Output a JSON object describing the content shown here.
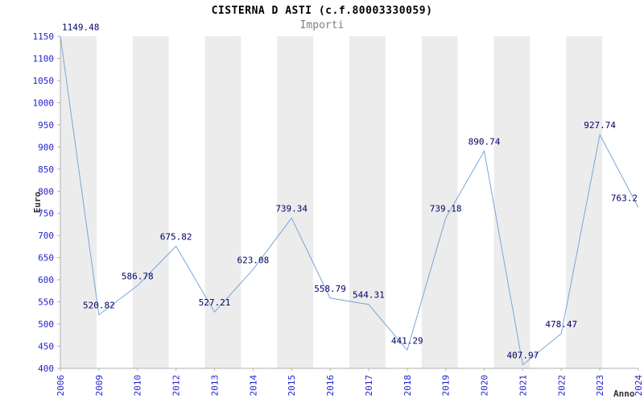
{
  "chart_data": {
    "type": "line",
    "title": "CISTERNA D ASTI (c.f.80003330059)",
    "subtitle": "Importi",
    "xlabel": "Anno",
    "ylabel": "Euro",
    "categories": [
      "2006",
      "2009",
      "2010",
      "2012",
      "2013",
      "2014",
      "2015",
      "2016",
      "2017",
      "2018",
      "2019",
      "2020",
      "2021",
      "2022",
      "2023",
      "2024"
    ],
    "values": [
      1149.48,
      520.82,
      586.78,
      675.82,
      527.21,
      623.08,
      739.34,
      558.79,
      544.31,
      441.29,
      739.18,
      890.74,
      407.97,
      478.47,
      927.74,
      763.2
    ],
    "point_labels": [
      "1149.48",
      "520.82",
      "586.78",
      "675.82",
      "527.21",
      "623.08",
      "739.34",
      "558.79",
      "544.31",
      "441.29",
      "739.18",
      "890.74",
      "407.97",
      "478.47",
      "927.74",
      "763.2"
    ],
    "ylim": [
      400,
      1150
    ],
    "ytick_step": 50,
    "grid": "vertical-stripes",
    "legend": "none",
    "colors": {
      "line": "#7aa6d8",
      "stripe": "#ececec",
      "tick_label": "#2222cc",
      "point_label": "#000066",
      "axis_line": "#b0b0b0",
      "axis_title": "#303030",
      "title": "#000000",
      "subtitle": "#808080",
      "background": "#ffffff"
    }
  }
}
